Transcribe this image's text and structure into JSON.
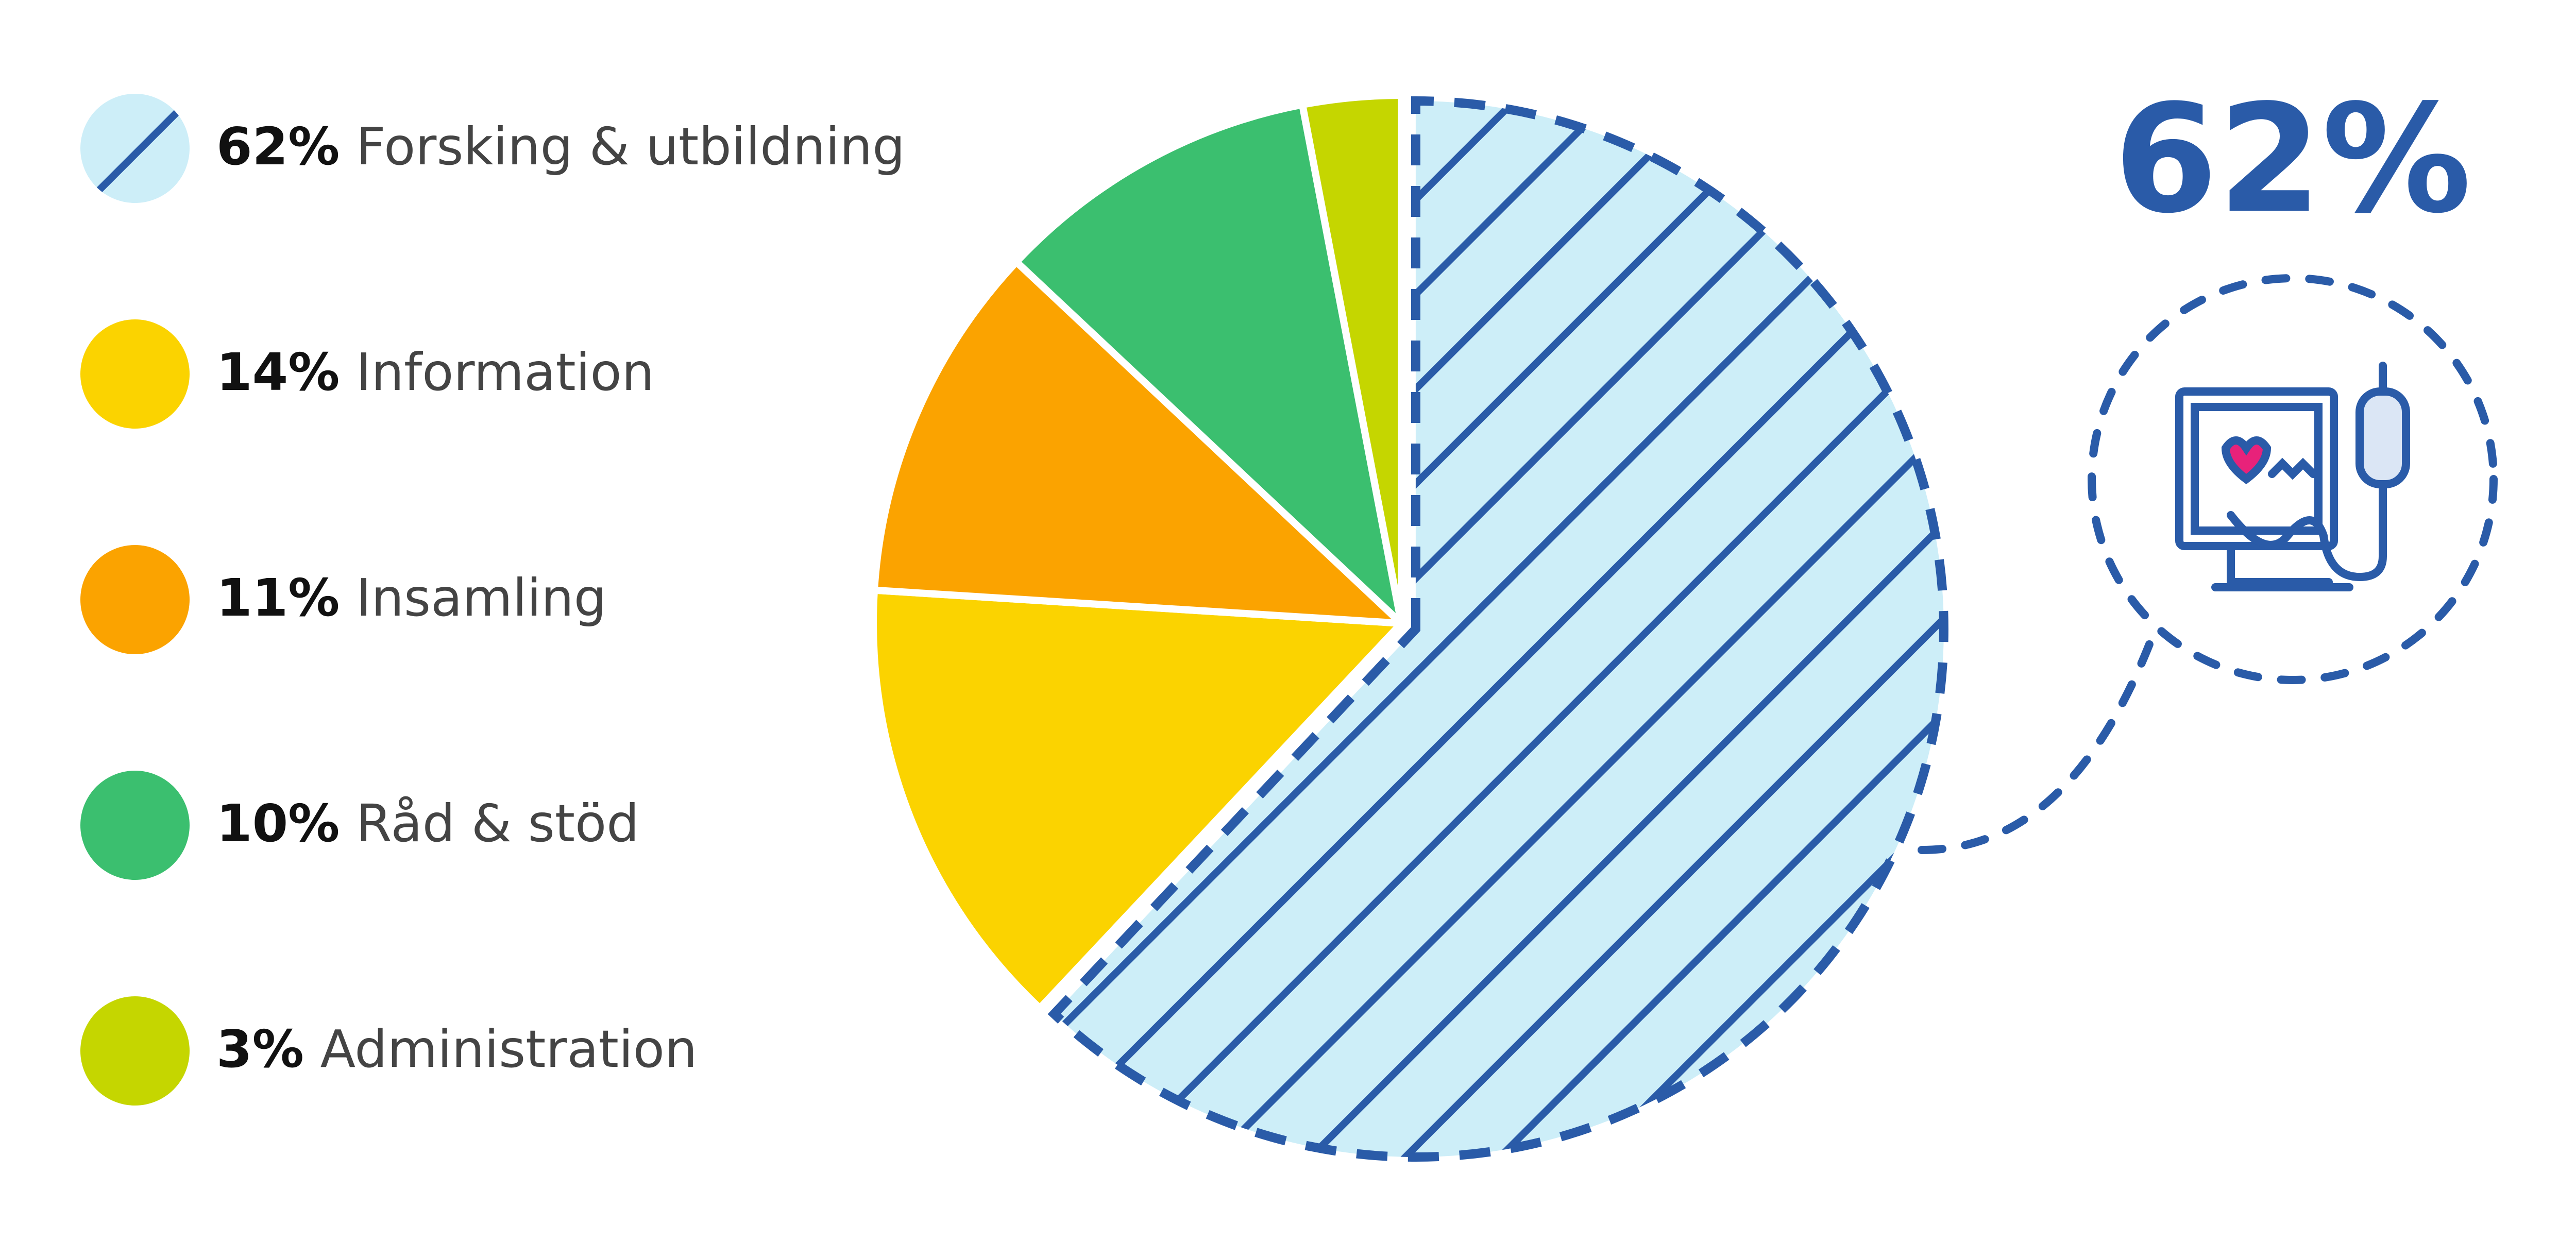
{
  "chart_data": {
    "type": "pie",
    "categories": [
      "Forsking & utbildning",
      "Information",
      "Insamling",
      "Råd & stöd",
      "Administration"
    ],
    "values": [
      62,
      14,
      11,
      10,
      3
    ],
    "value_labels": [
      "62%",
      "14%",
      "11%",
      "10%",
      "3%"
    ],
    "colors": [
      "#cdeef8",
      "#fbd300",
      "#fba300",
      "#3bbf6f",
      "#c5d600"
    ],
    "accent": "#2a5ba8"
  }
}
